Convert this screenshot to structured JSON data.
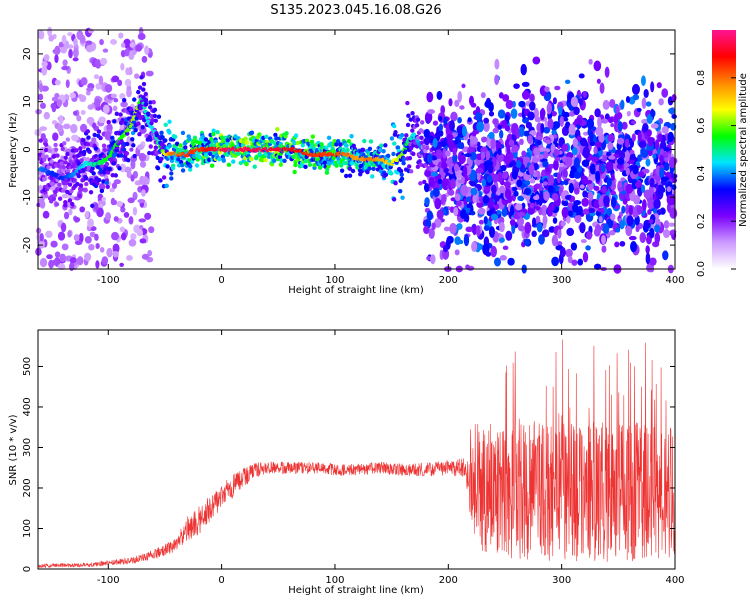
{
  "title": "S135.2023.045.16.08.G26",
  "chart_data": [
    {
      "type": "heatmap",
      "xlabel": "Height of straight line (km)",
      "ylabel": "Frequency (Hz)",
      "xlim": [
        -162,
        400
      ],
      "ylim": [
        -25,
        25
      ],
      "x_ticks": [
        -100,
        0,
        100,
        200,
        300,
        400
      ],
      "y_ticks": [
        -20,
        -10,
        0,
        10,
        20
      ],
      "colorbar": {
        "label": "Normalized spectral amplitude",
        "range": [
          0,
          1
        ],
        "ticks": [
          "0.0",
          "0.2",
          "0.4",
          "0.6",
          "0.8"
        ],
        "colors": [
          "#ffffff",
          "#cc99ff",
          "#7a00ff",
          "#0000ff",
          "#00e5ff",
          "#00ff00",
          "#ffff00",
          "#ff8800",
          "#ff0000",
          "#ff1493"
        ]
      },
      "ridge": {
        "x": [
          -160,
          -150,
          -140,
          -130,
          -120,
          -110,
          -100,
          -90,
          -80,
          -75,
          -70,
          -65,
          -60,
          -55,
          -50,
          -45,
          -40,
          -30,
          -20,
          -10,
          0,
          20,
          40,
          60,
          80,
          100,
          110,
          120,
          130,
          140,
          150,
          160,
          165,
          170,
          175,
          180,
          190,
          200
        ],
        "y": [
          -4,
          -5,
          -6,
          -5,
          -3,
          -3,
          -2,
          2,
          5,
          8,
          11,
          6,
          4,
          1,
          -1,
          -1,
          -1,
          -1,
          0,
          0,
          0,
          0,
          0,
          0,
          -1,
          -1,
          -1,
          -2,
          -2,
          -2,
          -3,
          -1,
          2,
          3,
          1,
          -2,
          -4,
          -5
        ],
        "amplitude": [
          0.4,
          0.35,
          0.35,
          0.4,
          0.45,
          0.5,
          0.55,
          0.55,
          0.6,
          0.65,
          0.5,
          0.45,
          0.45,
          0.5,
          0.65,
          0.8,
          0.8,
          0.85,
          0.85,
          0.9,
          0.95,
          0.95,
          0.95,
          0.9,
          0.85,
          0.85,
          0.8,
          0.75,
          0.8,
          0.75,
          0.7,
          0.6,
          0.5,
          0.45,
          0.4,
          0.35,
          0.35,
          0.3
        ]
      },
      "scatter_region": {
        "x_start": 180,
        "x_end": 400,
        "y_range": [
          -25,
          15
        ]
      }
    },
    {
      "type": "line",
      "xlabel": "Height of straight line (km)",
      "ylabel": "SNR (10 * v/v)",
      "xlim": [
        -162,
        400
      ],
      "ylim": [
        0,
        590
      ],
      "x_ticks": [
        -100,
        0,
        100,
        200,
        300,
        400
      ],
      "y_ticks": [
        0,
        100,
        200,
        300,
        400,
        500
      ],
      "color": "#ee3333",
      "envelope": {
        "x": [
          -162,
          -120,
          -80,
          -60,
          -40,
          -30,
          -20,
          -10,
          0,
          10,
          20,
          30,
          40,
          60,
          80,
          100,
          120,
          140,
          160,
          180,
          200,
          215,
          220,
          230,
          260,
          300,
          340,
          380,
          400
        ],
        "mean": [
          8,
          10,
          20,
          35,
          60,
          100,
          120,
          150,
          180,
          205,
          225,
          245,
          250,
          250,
          250,
          245,
          245,
          250,
          245,
          245,
          250,
          250,
          230,
          200,
          190,
          190,
          190,
          185,
          185
        ],
        "spread": [
          5,
          5,
          8,
          12,
          18,
          30,
          35,
          35,
          30,
          30,
          25,
          20,
          15,
          15,
          15,
          15,
          15,
          15,
          15,
          18,
          18,
          25,
          130,
          160,
          170,
          170,
          175,
          170,
          170
        ]
      }
    }
  ]
}
